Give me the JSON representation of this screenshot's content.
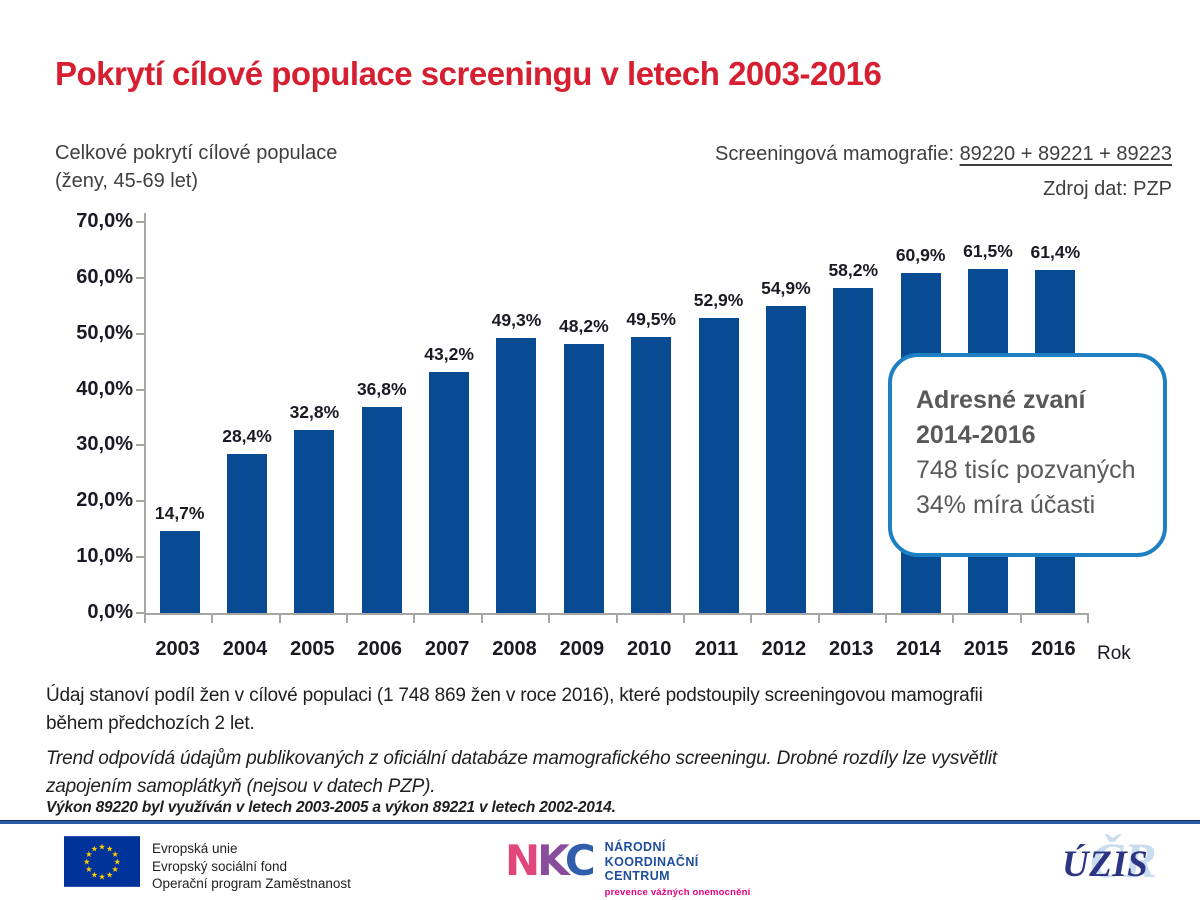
{
  "page": {
    "title": "Pokrytí cílové populace screeningu v letech 2003-2016"
  },
  "subtitles": {
    "left_line1": "Celkové pokrytí cílové populace",
    "left_line2": "(ženy, 45-69 let)",
    "right_label": "Screeningová mamografie: ",
    "right_codes": "89220 + 89221 + 89223",
    "right_source": "Zdroj dat: PZP"
  },
  "chart_data": {
    "type": "bar",
    "title": "Celkové pokrytí cílové populace (ženy, 45-69 let)",
    "categories": [
      "2003",
      "2004",
      "2005",
      "2006",
      "2007",
      "2008",
      "2009",
      "2010",
      "2011",
      "2012",
      "2013",
      "2014",
      "2015",
      "2016"
    ],
    "values": [
      14.7,
      28.4,
      32.8,
      36.8,
      43.2,
      49.3,
      48.2,
      49.5,
      52.9,
      54.9,
      58.2,
      60.9,
      61.5,
      61.4
    ],
    "value_labels": [
      "14,7%",
      "28,4%",
      "32,8%",
      "36,8%",
      "43,2%",
      "49,3%",
      "48,2%",
      "49,5%",
      "52,9%",
      "54,9%",
      "58,2%",
      "60,9%",
      "61,5%",
      "61,4%"
    ],
    "xlabel": "Rok",
    "ylabel": "",
    "ylim": [
      0,
      70
    ],
    "ytick_step": 10,
    "ytick_labels": [
      "0,0%",
      "10,0%",
      "20,0%",
      "30,0%",
      "40,0%",
      "50,0%",
      "60,0%",
      "70,0%"
    ],
    "grid": false,
    "legend": null,
    "bar_color": "#084B93"
  },
  "callout": {
    "title_line1": "Adresné zvaní",
    "title_line2": "2014-2016",
    "body_line1": "748 tisíc pozvaných",
    "body_line2": "34% míra účasti",
    "border_color": "#1E7FC2"
  },
  "notes": {
    "p1_line1": "Údaj stanoví podíl žen v cílové populaci (1 748 869 žen v roce 2016), které podstoupily screeningovou mamografii",
    "p1_line2": "během předchozích 2 let.",
    "p2_line1": "Trend odpovídá údajům publikovaných z oficiální databáze mamografického screeningu. Drobné rozdíly lze vysvětlit",
    "p2_line2": "zapojením samoplátkyň (nejsou v datech PZP).",
    "p3": "Výkon 89220 byl využíván v letech 2003-2005 a výkon 89221 v letech 2002-2014."
  },
  "footer": {
    "eu_line1": "Evropská unie",
    "eu_line2": "Evropský sociální fond",
    "eu_line3": "Operační program Zaměstnanost",
    "nkc_l1": "N",
    "nkc_l2": "K",
    "nkc_l3": "C",
    "nkc_line1": "NÁRODNÍ",
    "nkc_line2": "KOORDINAČNÍ",
    "nkc_line3": "CENTRUM",
    "nkc_sub": "prevence vážných onemocnění",
    "uzis_text": "ÚZIS",
    "uzis_watermark": "ČR"
  },
  "colors": {
    "title_red": "#D61F30",
    "bar_blue": "#084B93",
    "callout_border": "#1E7FC2",
    "divider_blue": "#2B5AA7",
    "eu_flag_blue": "#003399",
    "eu_star_yellow": "#FFCC00"
  }
}
